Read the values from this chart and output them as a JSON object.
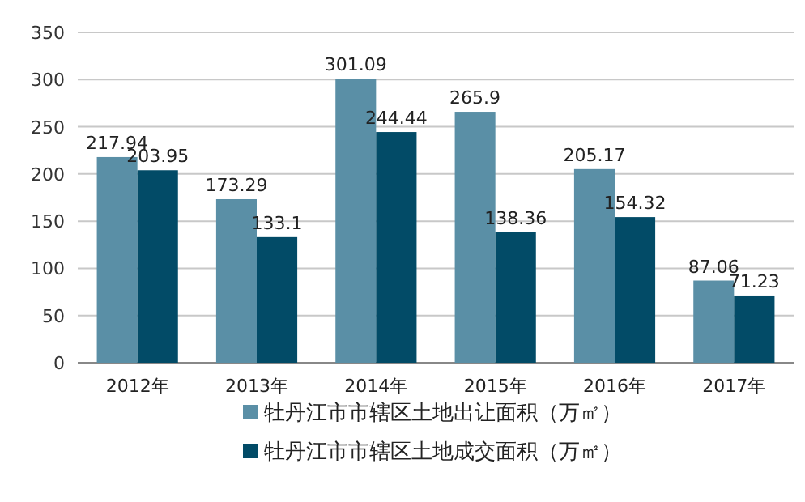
{
  "chart_data": {
    "type": "bar",
    "categories": [
      "2012年",
      "2013年",
      "2014年",
      "2015年",
      "2016年",
      "2017年"
    ],
    "series": [
      {
        "name": "牡丹江市市辖区土地出让面积（万㎡）",
        "color": "#5a8fa6",
        "values": [
          217.94,
          173.29,
          301.09,
          265.9,
          205.17,
          87.06
        ]
      },
      {
        "name": "牡丹江市市辖区土地成交面积（万㎡）",
        "color": "#024b67",
        "values": [
          203.95,
          133.1,
          244.44,
          138.36,
          154.32,
          71.23
        ]
      }
    ],
    "ylim": [
      0,
      350
    ],
    "yticks": [
      0,
      50,
      100,
      150,
      200,
      250,
      300,
      350
    ],
    "grid": "y",
    "legend": "bottom",
    "data_labels": true
  }
}
